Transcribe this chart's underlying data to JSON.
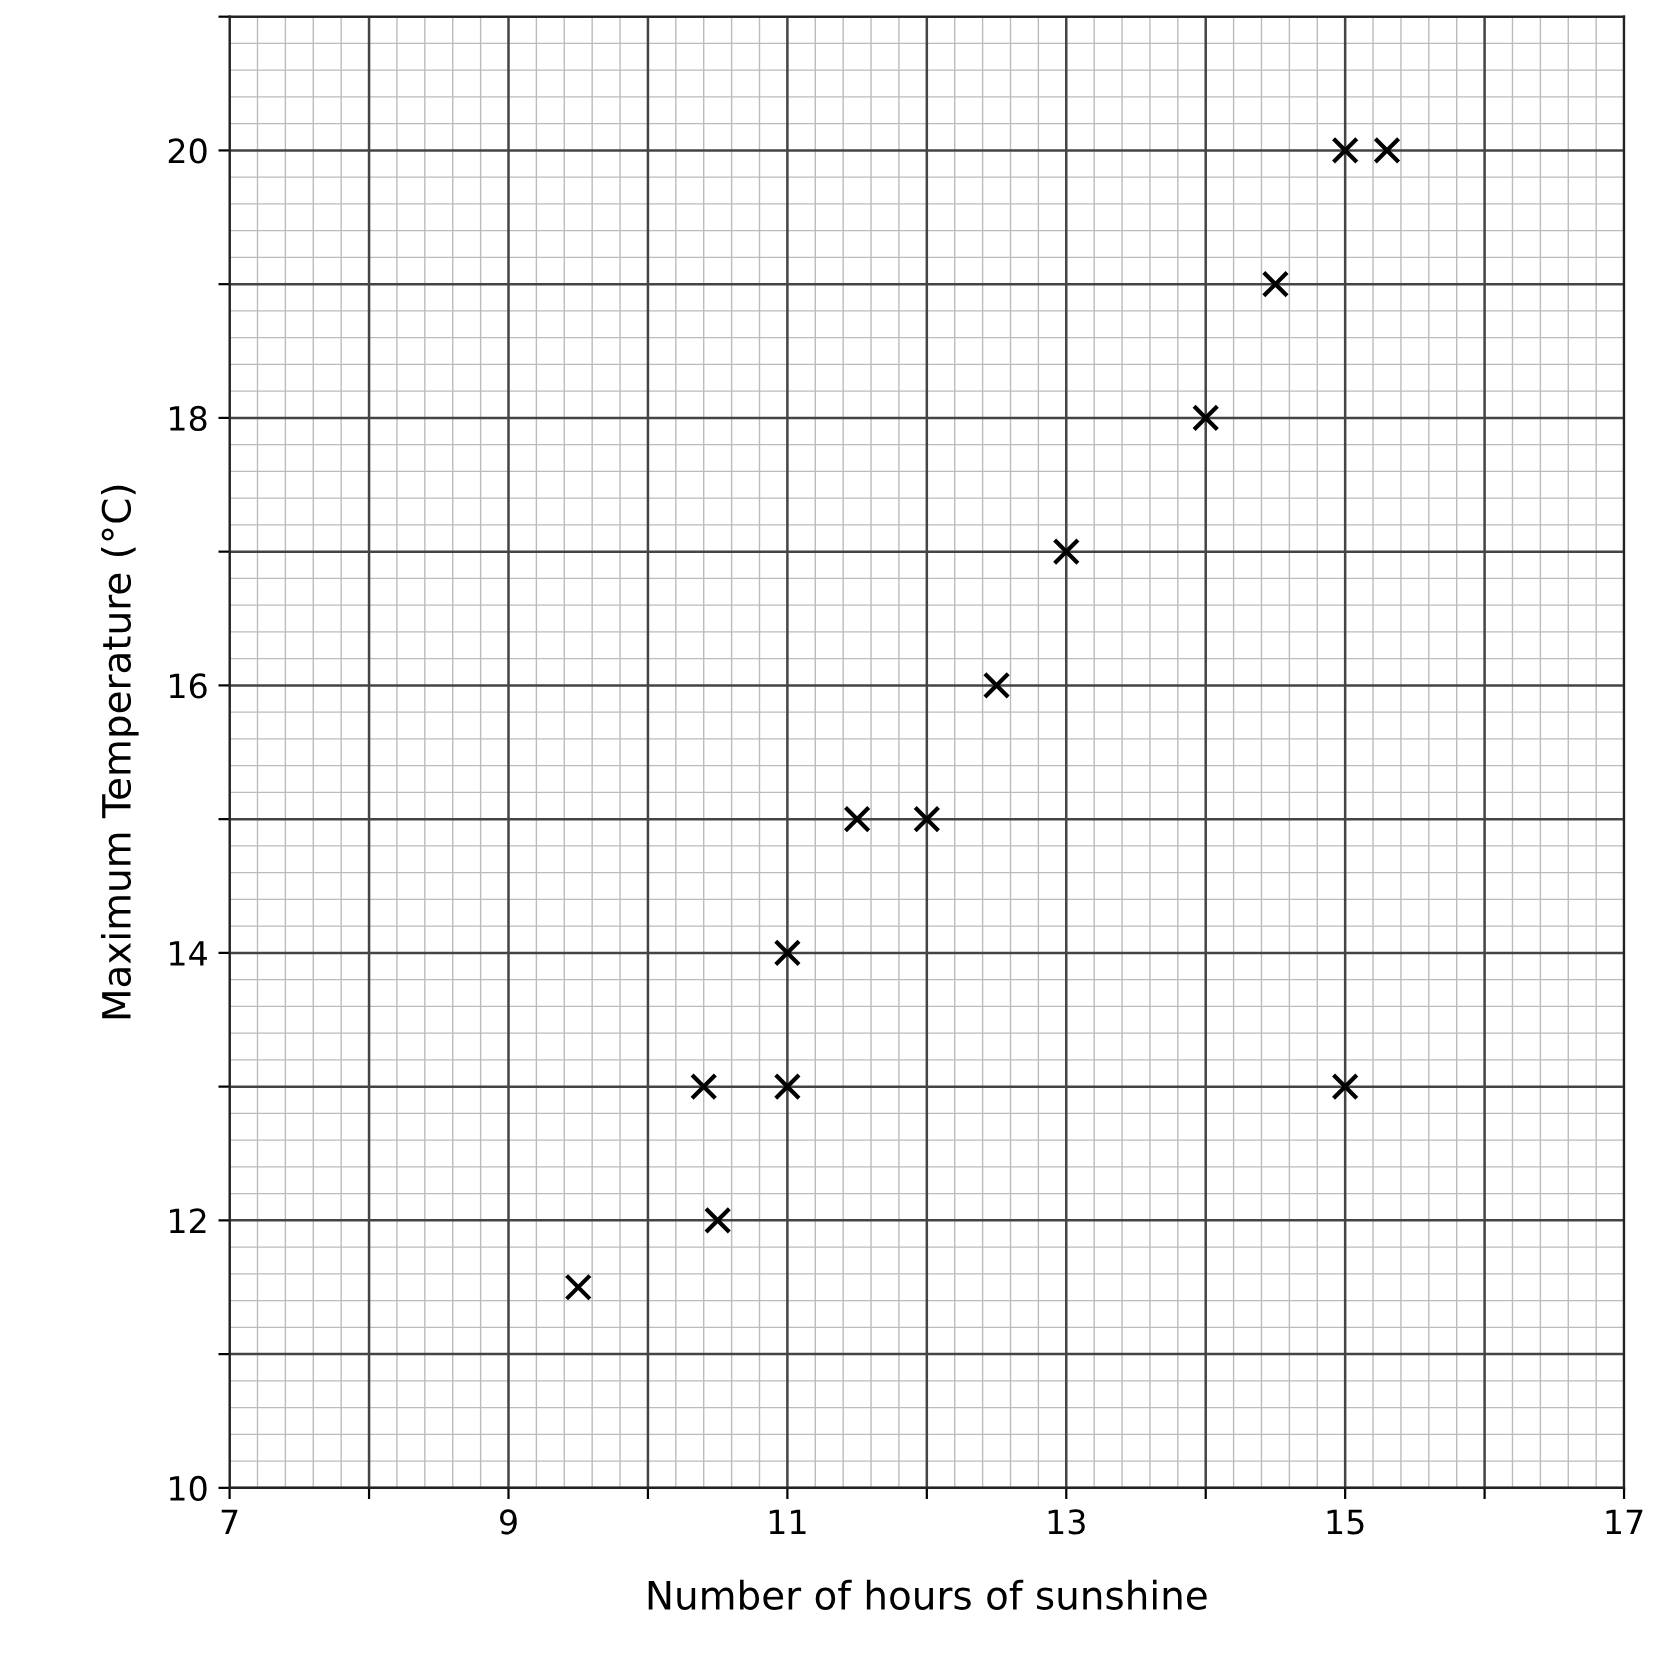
{
  "chart_data": {
    "type": "scatter",
    "xlabel": "Number of hours of sunshine",
    "ylabel": "Maximum Temperature (°C)",
    "x": [
      9.5,
      10.4,
      10.5,
      11,
      11,
      11.5,
      12,
      12.5,
      13,
      14,
      14.5,
      15,
      15.3,
      15
    ],
    "values": [
      11.5,
      13,
      12,
      13,
      14,
      15,
      15,
      16,
      17,
      18,
      19,
      20,
      20,
      13
    ],
    "color": "#000000",
    "marker": "cross",
    "grid": true,
    "xlim": [
      7,
      17
    ],
    "ylim": [
      10,
      21
    ],
    "xticks": [
      7,
      {
        "value": 8,
        "label": null
      },
      9,
      {
        "value": 10,
        "label": null
      },
      11,
      {
        "value": 12,
        "label": null
      },
      13,
      {
        "value": 14,
        "label": null
      },
      15,
      {
        "value": 16,
        "label": null
      },
      17
    ],
    "yticks": [
      10,
      {
        "value": 11,
        "label": null
      },
      12,
      {
        "value": 13,
        "label": null
      },
      14,
      {
        "value": 15,
        "label": null
      },
      16,
      {
        "value": 17,
        "label": null
      },
      18,
      {
        "value": 19,
        "label": null
      },
      20,
      {
        "value": 21,
        "label": null
      }
    ]
  }
}
